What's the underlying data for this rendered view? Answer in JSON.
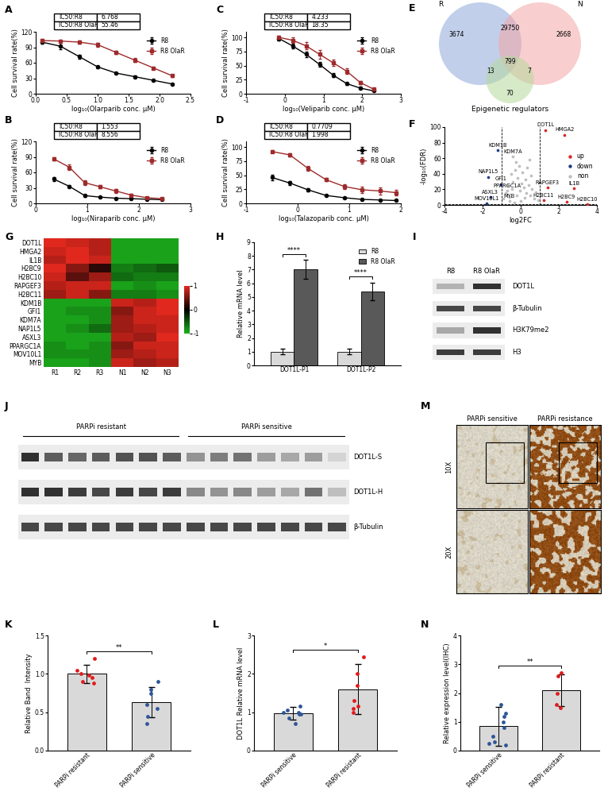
{
  "chart_data": [
    {
      "panel": "A",
      "type": "line",
      "xlabel": "log₁₀(Olarparib conc. μM)",
      "ylabel": "Cell survival rate(%)",
      "x": [
        0.1,
        0.4,
        0.7,
        1.0,
        1.3,
        1.6,
        1.9,
        2.2
      ],
      "xlim": [
        0,
        2.5
      ],
      "xticks": [
        {
          "value": 0,
          "label": "0.0"
        },
        0.5,
        {
          "value": 1,
          "label": "1.0"
        },
        1.5,
        {
          "value": 2,
          "label": "2.0"
        },
        2.5
      ],
      "ylim": [
        0,
        120
      ],
      "yticks": [
        0,
        30,
        60,
        90,
        120
      ],
      "legend": "upper right",
      "ic50_table": [
        [
          "IC50:R8",
          6.768
        ],
        [
          "IC50:R8 OlaR",
          55.46
        ]
      ],
      "series": [
        {
          "name": "R8",
          "color": "#000000",
          "marker": "circle",
          "line_style": "solid",
          "values": [
            100,
            92,
            72,
            52,
            40,
            33,
            26,
            19
          ],
          "errors": [
            3,
            6,
            4,
            2,
            2,
            2,
            2,
            1
          ]
        },
        {
          "name": "R8 OlaR",
          "color": "#9e2a2b",
          "marker": "square",
          "line_style": "solid",
          "values": [
            103,
            102,
            100,
            95,
            80,
            65,
            50,
            35
          ],
          "errors": [
            3,
            2,
            3,
            4,
            3,
            4,
            3,
            2
          ]
        }
      ]
    },
    {
      "panel": "B",
      "type": "line",
      "xlabel": "log₁₀(Niraparib conc. μM)",
      "ylabel": "Cell survival rate(%)",
      "x": [
        0.35,
        0.65,
        0.95,
        1.25,
        1.55,
        1.85,
        2.15,
        2.45
      ],
      "xlim": [
        0,
        3
      ],
      "xticks": [
        0,
        1,
        2,
        3
      ],
      "ylim": [
        0,
        120
      ],
      "yticks": [
        0,
        30,
        60,
        90,
        120
      ],
      "legend": "upper right",
      "ic50_table": [
        [
          "IC50:R8",
          1.553
        ],
        [
          "IC50:R8 OlaR",
          8.556
        ]
      ],
      "series": [
        {
          "name": "R8",
          "color": "#000000",
          "marker": "circle",
          "line_style": "solid",
          "values": [
            47,
            33,
            15,
            12,
            10,
            9,
            8,
            7
          ],
          "errors": [
            4,
            2,
            2,
            1,
            1,
            1,
            1,
            1
          ]
        },
        {
          "name": "R8 OlaR",
          "color": "#9e2a2b",
          "marker": "square",
          "line_style": "solid",
          "values": [
            86,
            70,
            40,
            32,
            24,
            16,
            11,
            9
          ],
          "errors": [
            3,
            5,
            4,
            3,
            4,
            2,
            2,
            1
          ]
        }
      ]
    },
    {
      "panel": "C",
      "type": "line",
      "xlabel": "log₁₀(Veliparib conc. μM)",
      "ylabel": "Cell survival rate(%)",
      "x": [
        -0.15,
        0.2,
        0.55,
        0.9,
        1.25,
        1.6,
        1.95,
        2.3
      ],
      "xlim": [
        -1,
        3
      ],
      "xticks": [
        -1,
        0,
        1,
        2,
        3
      ],
      "ylim": [
        0,
        110
      ],
      "yticks": [
        0,
        25,
        50,
        75,
        100
      ],
      "legend": "upper right",
      "ic50_table": [
        [
          "IC50:R8",
          4.233
        ],
        [
          "IC50:R8 OlaR",
          18.35
        ]
      ],
      "series": [
        {
          "name": "R8",
          "color": "#000000",
          "marker": "circle",
          "line_style": "solid",
          "values": [
            98,
            85,
            70,
            52,
            33,
            18,
            10,
            5
          ],
          "errors": [
            3,
            4,
            5,
            4,
            3,
            2,
            2,
            1
          ]
        },
        {
          "name": "R8 OlaR",
          "color": "#9e2a2b",
          "marker": "square",
          "line_style": "solid",
          "values": [
            100,
            95,
            85,
            70,
            55,
            40,
            20,
            8
          ],
          "errors": [
            3,
            5,
            6,
            8,
            6,
            5,
            3,
            2
          ]
        }
      ]
    },
    {
      "panel": "D",
      "type": "line",
      "xlabel": "log₁₀(Talazoparib conc. μM)",
      "ylabel": "Cell survival rate(%)",
      "x": [
        -0.5,
        -0.15,
        0.2,
        0.55,
        0.9,
        1.25,
        1.6,
        1.9
      ],
      "xlim": [
        -1,
        2
      ],
      "xticks": [
        -1,
        0,
        1,
        2
      ],
      "ylim": [
        0,
        110
      ],
      "yticks": [
        0,
        25,
        50,
        75,
        100
      ],
      "legend": "upper right",
      "ic50_table": [
        [
          "IC50:R8",
          0.7709
        ],
        [
          "IC50:R8 OlaR",
          1.998
        ]
      ],
      "series": [
        {
          "name": "R8",
          "color": "#000000",
          "marker": "circle",
          "line_style": "solid",
          "values": [
            46,
            36,
            24,
            14,
            10,
            7,
            6,
            5
          ],
          "errors": [
            5,
            4,
            3,
            2,
            1,
            1,
            1,
            1
          ]
        },
        {
          "name": "R8 OlaR",
          "color": "#9e2a2b",
          "marker": "square",
          "line_style": "solid",
          "values": [
            92,
            86,
            62,
            42,
            30,
            24,
            22,
            19
          ],
          "errors": [
            2,
            3,
            4,
            3,
            4,
            5,
            6,
            5
          ]
        }
      ]
    },
    {
      "panel": "E",
      "type": "venn",
      "sets": [
        {
          "name": "R",
          "color": "#8ea9db"
        },
        {
          "name": "N",
          "color": "#f4a6a6"
        },
        {
          "name": "Epigenetic regulators",
          "color": "#b5d99c"
        }
      ],
      "regions": [
        {
          "sets": [
            0
          ],
          "value": 3674
        },
        {
          "sets": [
            1
          ],
          "value": 2668
        },
        {
          "sets": [
            0,
            1
          ],
          "value": 29750
        },
        {
          "sets": [
            0,
            1,
            2
          ],
          "value": 799
        },
        {
          "sets": [
            0,
            2
          ],
          "value": 13
        },
        {
          "sets": [
            1,
            2
          ],
          "value": 7
        },
        {
          "sets": [
            2
          ],
          "value": 70
        }
      ]
    },
    {
      "panel": "F",
      "type": "scatter",
      "xlabel": "log2FC",
      "ylabel": "-log₁₀(FDR)",
      "xlim": [
        -4,
        4
      ],
      "xticks": [
        -4,
        -2,
        0,
        2,
        4
      ],
      "ylim": [
        0,
        100
      ],
      "yticks": [
        0,
        20,
        40,
        60,
        80,
        100
      ],
      "legend": "center right",
      "threshold_lines": {
        "x": [
          -1,
          1
        ],
        "y": [
          1.3
        ]
      },
      "series": [
        {
          "name": "up",
          "color": "#d62728",
          "x": [
            1.3,
            2.3,
            1.4,
            2.8,
            1.2,
            2.4,
            3.5
          ],
          "values": [
            96,
            90,
            22,
            21,
            6,
            4,
            1
          ],
          "labels": [
            "DOT1L",
            "HMGA2",
            "RAPGEF3",
            "IL1B",
            "H2BC11",
            "H2BC9",
            "H2BC10"
          ]
        },
        {
          "name": "down",
          "color": "#1f3c88",
          "x": [
            -1.2,
            -1.7,
            -1.05,
            -1.6,
            -1.8
          ],
          "values": [
            70,
            36,
            27,
            10,
            2
          ],
          "labels": [
            "KDM1B",
            "NAP1L5",
            "GFI1",
            "ASXL3",
            "MOV10L1"
          ]
        },
        {
          "name": "non",
          "color": "#bfbfbf",
          "x": [
            -0.4,
            -0.7,
            -0.6,
            -0.9,
            -0.8,
            -0.7,
            -0.6,
            -0.5,
            -0.45,
            -0.4,
            -0.3,
            -0.25,
            -0.2,
            -0.15,
            -0.1,
            -0.05,
            0,
            0.05,
            0.1,
            0.15,
            0.2,
            0.25,
            0.3,
            0.35,
            0.4,
            0.5,
            0.55,
            0.6,
            0.7,
            0.8,
            0.9,
            -0.35,
            0.45
          ],
          "values": [
            62,
            18,
            5,
            8,
            15,
            25,
            10,
            40,
            20,
            30,
            45,
            55,
            12,
            35,
            50,
            18,
            5,
            28,
            42,
            22,
            9,
            33,
            15,
            48,
            26,
            12,
            38,
            20,
            8,
            16,
            6,
            3,
            58
          ],
          "labels": [
            "KDM7A",
            "PPARGC1A",
            "MYB",
            null,
            null,
            null,
            null,
            null,
            null,
            null,
            null,
            null,
            null,
            null,
            null,
            null,
            null,
            null,
            null,
            null,
            null,
            null,
            null,
            null,
            null,
            null,
            null,
            null,
            null,
            null,
            null,
            null,
            null
          ]
        }
      ]
    },
    {
      "panel": "G",
      "type": "heatmap",
      "rows": [
        "DOT1L",
        "HMGA2",
        "IL1B",
        "H2BC9",
        "H2BC10",
        "RAPGEF3",
        "H2BC11",
        "KDM1B",
        "GFI1",
        "KDM7A",
        "NAP1L5",
        "ASXL3",
        "PPARGC1A",
        "MOV10L1",
        "MYB"
      ],
      "columns": [
        "R1",
        "R2",
        "R3",
        "N1",
        "N2",
        "N3"
      ],
      "cells": [
        [
          1.0,
          0.9,
          0.8,
          -0.9,
          -0.9,
          -0.9
        ],
        [
          0.9,
          1.0,
          0.8,
          -0.9,
          -0.9,
          -0.9
        ],
        [
          0.8,
          1.0,
          0.9,
          -0.9,
          -0.9,
          -0.9
        ],
        [
          1.0,
          0.6,
          0.2,
          -0.7,
          -0.6,
          -0.5
        ],
        [
          0.9,
          0.4,
          0.7,
          -0.6,
          -0.7,
          -0.7
        ],
        [
          0.8,
          0.9,
          0.9,
          -0.9,
          -0.8,
          -0.9
        ],
        [
          0.7,
          0.9,
          0.6,
          -0.7,
          -0.7,
          -0.8
        ],
        [
          -0.9,
          -0.9,
          -0.9,
          0.9,
          0.8,
          1.0
        ],
        [
          -0.9,
          -0.8,
          -0.8,
          0.6,
          0.9,
          1.0
        ],
        [
          -0.9,
          -0.9,
          -0.8,
          0.7,
          0.9,
          0.9
        ],
        [
          -0.9,
          -0.8,
          -0.6,
          0.7,
          0.8,
          0.9
        ],
        [
          -0.9,
          -0.9,
          -0.9,
          0.8,
          0.7,
          1.0
        ],
        [
          -0.8,
          -0.9,
          -0.8,
          0.6,
          0.9,
          0.9
        ],
        [
          -0.8,
          -0.8,
          -0.8,
          0.7,
          0.8,
          0.9
        ],
        [
          -0.9,
          -0.9,
          -0.8,
          0.9,
          0.7,
          0.8
        ]
      ],
      "colors": [
        "#1db31d",
        "#000000",
        "#e0281e"
      ],
      "color_range": [
        -1,
        1
      ],
      "color_ticks": [
        -1,
        0,
        1
      ]
    },
    {
      "panel": "H",
      "type": "bar",
      "ylabel": "Relative mRNA level",
      "categories": [
        "DOT1L-P1",
        "DOT1L-P2"
      ],
      "ylim": [
        0,
        9
      ],
      "yticks": [
        0,
        1,
        2,
        3,
        4,
        5,
        6,
        7,
        8,
        9
      ],
      "legend": "upper right",
      "annotations": [
        "****",
        "****"
      ],
      "series": [
        {
          "name": "R8",
          "color": "#d9d9d9",
          "values": [
            1,
            1
          ],
          "errors": [
            0.2,
            0.2
          ]
        },
        {
          "name": "R8 OlaR",
          "color": "#595959",
          "values": [
            7,
            5.4
          ],
          "errors": [
            0.7,
            0.65
          ]
        }
      ]
    },
    {
      "panel": "I",
      "type": "blot",
      "lanes": [
        "R8",
        "R8 OlaR"
      ],
      "rows": [
        {
          "label": "DOT1L",
          "intensity": [
            0.35,
            0.95
          ]
        },
        {
          "label": "β-Tubulin",
          "intensity": [
            0.85,
            0.85
          ]
        },
        {
          "label": "H3K79me2",
          "intensity": [
            0.4,
            0.95
          ]
        },
        {
          "label": "H3",
          "intensity": [
            0.9,
            0.9
          ]
        }
      ]
    },
    {
      "panel": "J",
      "type": "blot",
      "groups": [
        {
          "label": "PARPi resistant",
          "count": 7
        },
        {
          "label": "PARPi sensitive",
          "count": 7
        }
      ],
      "rows": [
        {
          "label": "DOT1L-S",
          "intensity": [
            0.95,
            0.75,
            0.7,
            0.75,
            0.8,
            0.8,
            0.75,
            0.5,
            0.6,
            0.65,
            0.45,
            0.4,
            0.45,
            0.2
          ]
        },
        {
          "label": "DOT1L-H",
          "intensity": [
            0.95,
            0.95,
            0.9,
            0.85,
            0.9,
            0.85,
            0.9,
            0.55,
            0.5,
            0.55,
            0.45,
            0.4,
            0.65,
            0.3
          ]
        },
        {
          "label": "β-Tubulin",
          "intensity": [
            0.85,
            0.85,
            0.85,
            0.85,
            0.85,
            0.85,
            0.85,
            0.85,
            0.85,
            0.85,
            0.85,
            0.85,
            0.85,
            0.85
          ]
        }
      ]
    },
    {
      "panel": "K",
      "type": "bar",
      "ylabel": "Relative Band  Intensity",
      "categories": [
        "PARPi resistant",
        "PARPi sensitive"
      ],
      "values": [
        1.0,
        0.63
      ],
      "errors": [
        0.12,
        0.2
      ],
      "color": "#d9d9d9",
      "colors": [
        "#e31a1c",
        "#2f5597"
      ],
      "points": [
        [
          0.98,
          1.2,
          0.95,
          1.0,
          0.9,
          0.88,
          1.05
        ],
        [
          0.9,
          0.55,
          0.8,
          0.45,
          0.6,
          0.35,
          0.75
        ]
      ],
      "ylim": [
        0,
        1.5
      ],
      "yticks": [
        {
          "value": 0,
          "label": "0.0"
        },
        0.5,
        {
          "value": 1,
          "label": "1.0"
        },
        1.5
      ],
      "annotations": [
        "**"
      ]
    },
    {
      "panel": "L",
      "type": "bar",
      "ylabel": "DOT1L Relative mRNA level",
      "categories": [
        "PARPi sensitive",
        "PARPi resistant"
      ],
      "values": [
        0.97,
        1.6
      ],
      "errors": [
        0.17,
        0.65
      ],
      "color": "#d9d9d9",
      "colors": [
        "#2f5597",
        "#e31a1c"
      ],
      "points": [
        [
          0.7,
          0.95,
          1.0,
          1.05,
          0.85,
          1.15,
          1.0,
          0.95
        ],
        [
          2.45,
          2.0,
          1.3,
          1.1,
          1.0,
          1.7,
          1.15
        ]
      ],
      "ylim": [
        0,
        3
      ],
      "yticks": [
        0,
        1,
        2,
        3
      ],
      "annotations": [
        "*"
      ]
    },
    {
      "panel": "M",
      "type": "image_grid",
      "columns": [
        "PARPi sensitive",
        "PARPi resistance"
      ],
      "rows": [
        "10X",
        "20X"
      ]
    },
    {
      "panel": "N",
      "type": "bar",
      "ylabel": "Relative expression level(IHC)",
      "categories": [
        "PARPi sensitive",
        "PARPi resistant"
      ],
      "values": [
        0.85,
        2.1
      ],
      "errors": [
        0.68,
        0.55
      ],
      "color": "#d9d9d9",
      "colors": [
        "#2f5597",
        "#e31a1c"
      ],
      "points": [
        [
          1.6,
          1.3,
          1.0,
          0.5,
          0.3,
          0.2,
          0.25,
          1.2,
          0.8
        ],
        [
          2.7,
          2.6,
          2.0,
          1.6,
          1.5
        ]
      ],
      "ylim": [
        0,
        4
      ],
      "yticks": [
        0,
        1,
        2,
        3,
        4
      ],
      "annotations": [
        "**"
      ]
    }
  ]
}
